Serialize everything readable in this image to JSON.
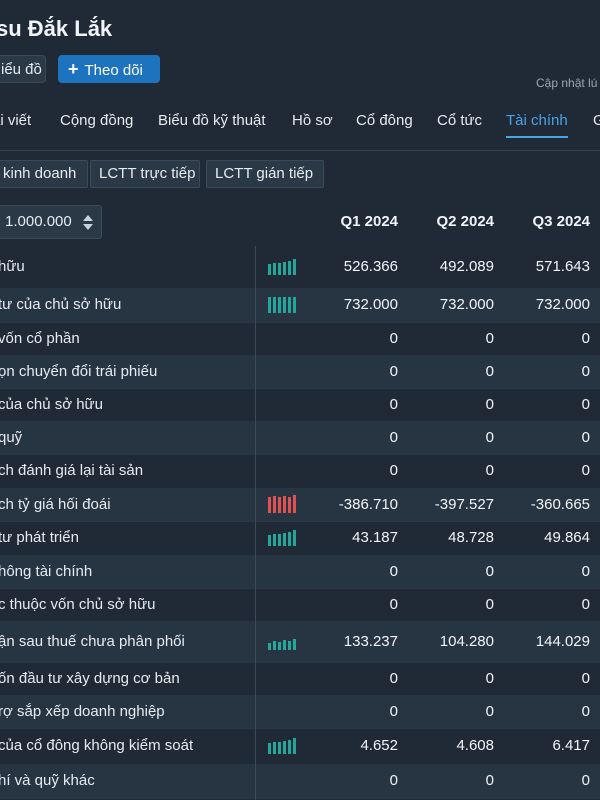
{
  "header": {
    "title": "su Đắk Lắk",
    "chart_button": "iểu đồ",
    "follow_button": "Theo dõi",
    "follow_icon": "plus-icon",
    "updated_text": "Cập nhật lú"
  },
  "tabs": [
    {
      "label": "ài viết",
      "active": false
    },
    {
      "label": "Cộng đồng",
      "active": false
    },
    {
      "label": "Biểu đồ kỹ thuật",
      "active": false
    },
    {
      "label": "Hồ sơ",
      "active": false
    },
    {
      "label": "Cổ đông",
      "active": false
    },
    {
      "label": "Cổ tức",
      "active": false
    },
    {
      "label": "Tài chính",
      "active": true
    },
    {
      "label": "G",
      "active": false
    }
  ],
  "subtabs": [
    "kinh doanh",
    "LCTT trực tiếp",
    "LCTT gián tiếp"
  ],
  "unit": {
    "value": "1.000.000",
    "icon": "sort-arrows-icon"
  },
  "quarters": [
    "Q1 2024",
    "Q2 2024",
    "Q3 2024"
  ],
  "colors": {
    "accent": "#4aa3e8",
    "positive": "#26a69a",
    "negative": "#e05252",
    "follow": "#1e73be"
  },
  "rows": [
    {
      "label": "hữu",
      "spark": "green-up",
      "values": [
        "526.366",
        "492.089",
        "571.643"
      ]
    },
    {
      "label": "tư của chủ sở hữu",
      "spark": "green-flat",
      "values": [
        "732.000",
        "732.000",
        "732.000"
      ]
    },
    {
      "label": "vốn cổ phần",
      "spark": "",
      "values": [
        "0",
        "0",
        "0"
      ]
    },
    {
      "label": "ọn chuyển đổi trái phiếu",
      "spark": "",
      "values": [
        "0",
        "0",
        "0"
      ]
    },
    {
      "label": "của chủ sở hữu",
      "spark": "",
      "values": [
        "0",
        "0",
        "0"
      ]
    },
    {
      "label": "quỹ",
      "spark": "",
      "values": [
        "0",
        "0",
        "0"
      ]
    },
    {
      "label": "ch đánh giá lại tài sản",
      "spark": "",
      "values": [
        "0",
        "0",
        "0"
      ]
    },
    {
      "label": "ch tỷ giá hối đoái",
      "spark": "red",
      "values": [
        "-386.710",
        "-397.527",
        "-360.665"
      ]
    },
    {
      "label": "tư phát triển",
      "spark": "green-up",
      "values": [
        "43.187",
        "48.728",
        "49.864"
      ]
    },
    {
      "label": "hông tài chính",
      "spark": "",
      "values": [
        "0",
        "0",
        "0"
      ]
    },
    {
      "label": "c thuộc vốn chủ sở hữu",
      "spark": "",
      "values": [
        "0",
        "0",
        "0"
      ]
    },
    {
      "label": "ận sau thuế chưa phân phối",
      "spark": "green-mixed",
      "values": [
        "133.237",
        "104.280",
        "144.029"
      ]
    },
    {
      "label": "ốn đầu tư xây dựng cơ bản",
      "spark": "",
      "values": [
        "0",
        "0",
        "0"
      ]
    },
    {
      "label": "rợ sắp xếp doanh nghiệp",
      "spark": "",
      "values": [
        "0",
        "0",
        "0"
      ]
    },
    {
      "label": "của cổ đông không kiểm soát",
      "spark": "green-up",
      "values": [
        "4.652",
        "4.608",
        "6.417"
      ]
    },
    {
      "label": "hí và quỹ khác",
      "spark": "",
      "values": [
        "0",
        "0",
        "0"
      ]
    }
  ]
}
